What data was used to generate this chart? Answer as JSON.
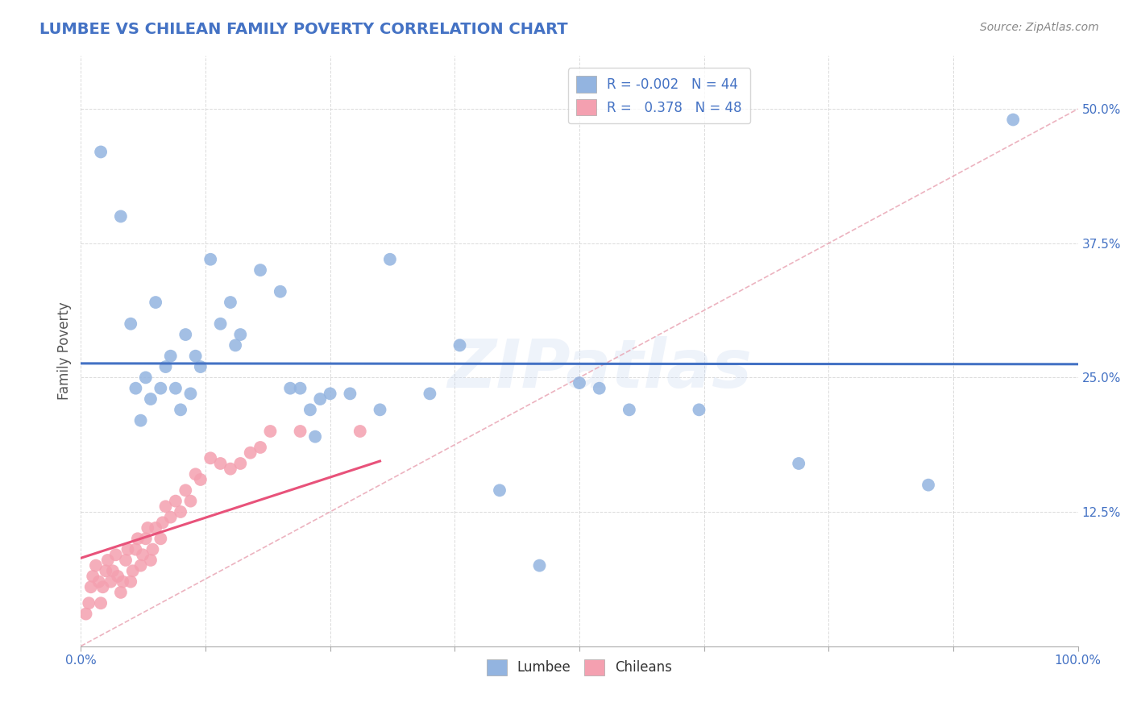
{
  "title": "LUMBEE VS CHILEAN FAMILY POVERTY CORRELATION CHART",
  "source": "Source: ZipAtlas.com",
  "ylabel": "Family Poverty",
  "xlim": [
    0.0,
    1.0
  ],
  "ylim": [
    0.0,
    0.55
  ],
  "y_ticks": [
    0.0,
    0.125,
    0.25,
    0.375,
    0.5
  ],
  "y_tick_labels": [
    "",
    "12.5%",
    "25.0%",
    "37.5%",
    "50.0%"
  ],
  "x_ticks": [
    0.0,
    0.125,
    0.25,
    0.375,
    0.5,
    0.625,
    0.75,
    0.875,
    1.0
  ],
  "lumbee_R": -0.002,
  "lumbee_N": 44,
  "chilean_R": 0.378,
  "chilean_N": 48,
  "lumbee_color": "#93b4e0",
  "chilean_color": "#f4a0b0",
  "lumbee_line_color": "#4472c4",
  "chilean_line_color": "#e8527a",
  "background_color": "#ffffff",
  "grid_color": "#cccccc",
  "title_color": "#4472c4",
  "watermark": "ZIPatlas",
  "lumbee_points_x": [
    0.02,
    0.04,
    0.05,
    0.055,
    0.06,
    0.065,
    0.07,
    0.075,
    0.08,
    0.085,
    0.09,
    0.095,
    0.1,
    0.105,
    0.11,
    0.115,
    0.12,
    0.13,
    0.14,
    0.15,
    0.155,
    0.16,
    0.18,
    0.2,
    0.21,
    0.22,
    0.23,
    0.235,
    0.24,
    0.25,
    0.27,
    0.3,
    0.31,
    0.35,
    0.38,
    0.42,
    0.46,
    0.5,
    0.52,
    0.55,
    0.62,
    0.72,
    0.85,
    0.935
  ],
  "lumbee_points_y": [
    0.46,
    0.4,
    0.3,
    0.24,
    0.21,
    0.25,
    0.23,
    0.32,
    0.24,
    0.26,
    0.27,
    0.24,
    0.22,
    0.29,
    0.235,
    0.27,
    0.26,
    0.36,
    0.3,
    0.32,
    0.28,
    0.29,
    0.35,
    0.33,
    0.24,
    0.24,
    0.22,
    0.195,
    0.23,
    0.235,
    0.235,
    0.22,
    0.36,
    0.235,
    0.28,
    0.145,
    0.075,
    0.245,
    0.24,
    0.22,
    0.22,
    0.17,
    0.15,
    0.49
  ],
  "chilean_points_x": [
    0.005,
    0.008,
    0.01,
    0.012,
    0.015,
    0.018,
    0.02,
    0.022,
    0.025,
    0.027,
    0.03,
    0.032,
    0.035,
    0.037,
    0.04,
    0.042,
    0.045,
    0.047,
    0.05,
    0.052,
    0.055,
    0.057,
    0.06,
    0.062,
    0.065,
    0.067,
    0.07,
    0.072,
    0.075,
    0.08,
    0.082,
    0.085,
    0.09,
    0.095,
    0.1,
    0.105,
    0.11,
    0.115,
    0.12,
    0.13,
    0.14,
    0.15,
    0.16,
    0.17,
    0.18,
    0.19,
    0.22,
    0.28
  ],
  "chilean_points_y": [
    0.03,
    0.04,
    0.055,
    0.065,
    0.075,
    0.06,
    0.04,
    0.055,
    0.07,
    0.08,
    0.06,
    0.07,
    0.085,
    0.065,
    0.05,
    0.06,
    0.08,
    0.09,
    0.06,
    0.07,
    0.09,
    0.1,
    0.075,
    0.085,
    0.1,
    0.11,
    0.08,
    0.09,
    0.11,
    0.1,
    0.115,
    0.13,
    0.12,
    0.135,
    0.125,
    0.145,
    0.135,
    0.16,
    0.155,
    0.175,
    0.17,
    0.165,
    0.17,
    0.18,
    0.185,
    0.2,
    0.2,
    0.2
  ],
  "diag_line_x": [
    0.0,
    1.0
  ],
  "diag_line_y": [
    0.0,
    0.5
  ]
}
